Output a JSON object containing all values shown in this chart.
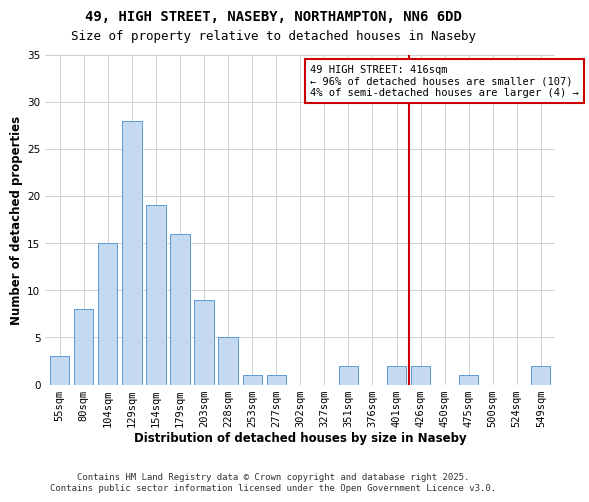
{
  "title": "49, HIGH STREET, NASEBY, NORTHAMPTON, NN6 6DD",
  "subtitle": "Size of property relative to detached houses in Naseby",
  "xlabel": "Distribution of detached houses by size in Naseby",
  "ylabel": "Number of detached properties",
  "bar_color": "#c5d9f1",
  "bar_edge_color": "#5b9bd5",
  "background_color": "#ffffff",
  "grid_color": "#d0d0d0",
  "categories": [
    "55sqm",
    "80sqm",
    "104sqm",
    "129sqm",
    "154sqm",
    "179sqm",
    "203sqm",
    "228sqm",
    "253sqm",
    "277sqm",
    "302sqm",
    "327sqm",
    "351sqm",
    "376sqm",
    "401sqm",
    "426sqm",
    "450sqm",
    "475sqm",
    "500sqm",
    "524sqm",
    "549sqm"
  ],
  "values": [
    3,
    8,
    15,
    28,
    19,
    16,
    9,
    5,
    1,
    1,
    0,
    0,
    2,
    0,
    2,
    2,
    0,
    1,
    0,
    0,
    2
  ],
  "ylim": [
    0,
    35
  ],
  "yticks": [
    0,
    5,
    10,
    15,
    20,
    25,
    30,
    35
  ],
  "marker_idx": 15,
  "marker_line_color": "#cc0000",
  "annotation_line1": "49 HIGH STREET: 416sqm",
  "annotation_line2": "← 96% of detached houses are smaller (107)",
  "annotation_line3": "4% of semi-detached houses are larger (4) →",
  "annotation_box_edge_color": "#cc0000",
  "annotation_box_face_color": "#ffffff",
  "footer_line1": "Contains HM Land Registry data © Crown copyright and database right 2025.",
  "footer_line2": "Contains public sector information licensed under the Open Government Licence v3.0.",
  "title_fontsize": 10,
  "subtitle_fontsize": 9,
  "axis_label_fontsize": 8.5,
  "tick_fontsize": 7.5,
  "annotation_fontsize": 7.5,
  "footer_fontsize": 6.5
}
